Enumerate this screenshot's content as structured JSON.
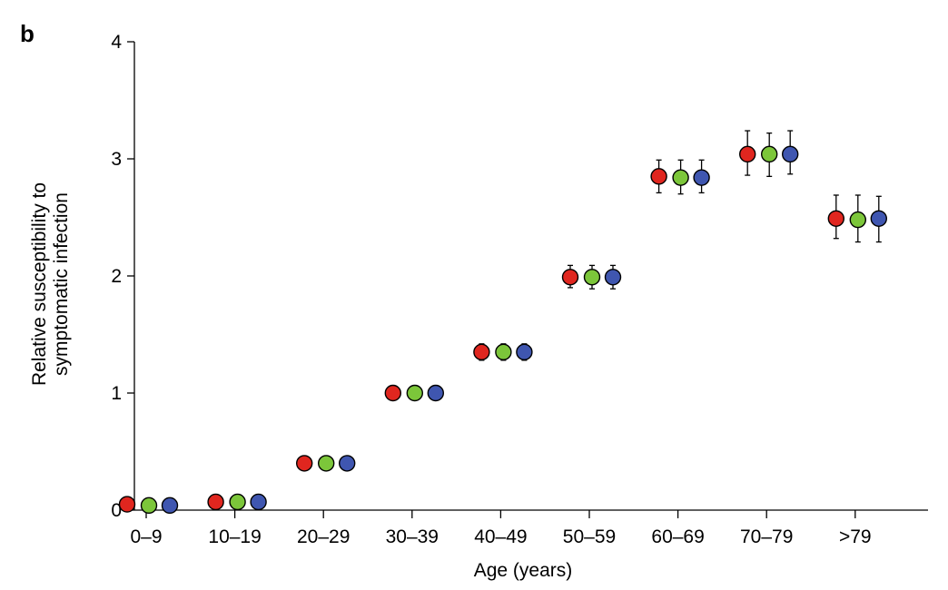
{
  "chart_data": {
    "type": "scatter",
    "panel_label": "b",
    "ylabel_lines": [
      "Relative susceptibility to",
      "symptomatic infection"
    ],
    "xlabel": "Age (years)",
    "categories": [
      "0–9",
      "10–19",
      "20–29",
      "30–39",
      "40–49",
      "50–59",
      "60–69",
      "70–79",
      ">79"
    ],
    "ylim": [
      0,
      4
    ],
    "yticks": [
      "0",
      "1",
      "2",
      "3",
      "4"
    ],
    "grid": false,
    "series": [
      {
        "color": "#e0261f",
        "values": [
          0.05,
          0.07,
          0.4,
          1.0,
          1.35,
          1.99,
          2.85,
          3.04,
          2.49
        ],
        "lower": [
          0.05,
          0.07,
          0.4,
          1.0,
          1.28,
          1.9,
          2.71,
          2.86,
          2.32
        ],
        "upper": [
          0.05,
          0.07,
          0.4,
          1.0,
          1.42,
          2.09,
          2.99,
          3.24,
          2.69
        ]
      },
      {
        "color": "#7cc63a",
        "values": [
          0.04,
          0.07,
          0.4,
          1.0,
          1.35,
          1.99,
          2.84,
          3.04,
          2.48
        ],
        "lower": [
          0.04,
          0.07,
          0.4,
          1.0,
          1.28,
          1.89,
          2.7,
          2.85,
          2.29
        ],
        "upper": [
          0.04,
          0.07,
          0.4,
          1.0,
          1.42,
          2.09,
          2.99,
          3.22,
          2.69
        ]
      },
      {
        "color": "#3f56b0",
        "values": [
          0.04,
          0.07,
          0.4,
          1.0,
          1.35,
          1.99,
          2.84,
          3.04,
          2.49
        ],
        "lower": [
          0.04,
          0.07,
          0.4,
          1.0,
          1.28,
          1.89,
          2.71,
          2.87,
          2.29
        ],
        "upper": [
          0.04,
          0.07,
          0.4,
          1.0,
          1.42,
          2.09,
          2.99,
          3.24,
          2.68
        ]
      }
    ]
  }
}
